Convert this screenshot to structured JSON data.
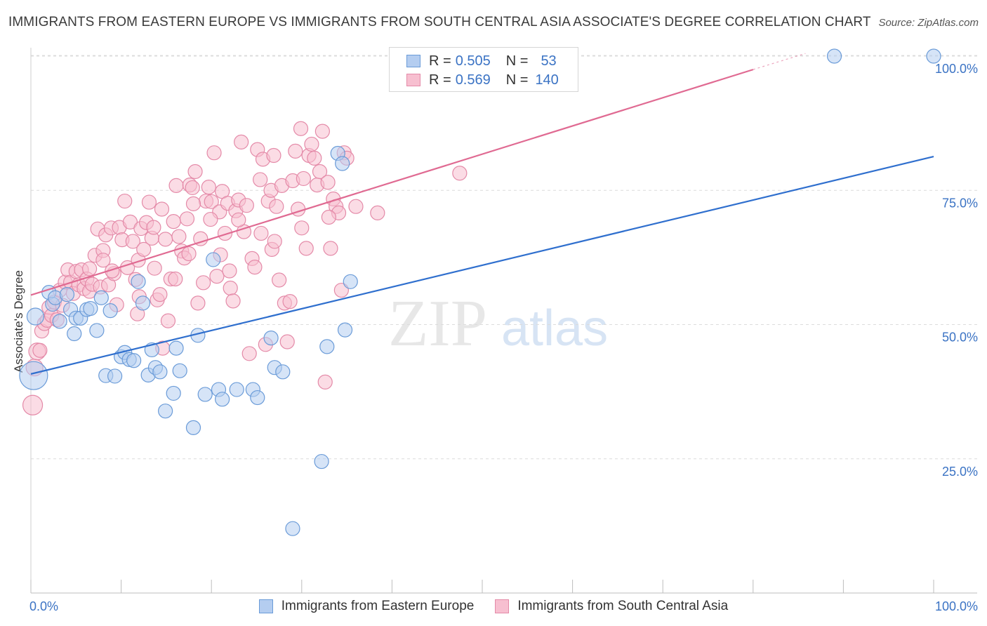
{
  "title": "IMMIGRANTS FROM EASTERN EUROPE VS IMMIGRANTS FROM SOUTH CENTRAL ASIA ASSOCIATE'S DEGREE CORRELATION CHART",
  "source": "Source: ZipAtlas.com",
  "watermark": {
    "part1": "ZIP",
    "part2": "atlas"
  },
  "legend": {
    "r_label": "R =",
    "n_label": "N =",
    "items": [
      {
        "r": "0.505",
        "n": "53",
        "fill": "#b4cdf0",
        "stroke": "#6a9bd8"
      },
      {
        "r": "0.569",
        "n": "140",
        "fill": "#f7bfd0",
        "stroke": "#e48aa8"
      }
    ]
  },
  "bottom_legend": [
    "Immigrants from Eastern Europe",
    "Immigrants from South Central Asia"
  ],
  "chart_data": {
    "type": "scatter",
    "xlabel": "",
    "ylabel": "Associate's Degree",
    "xlim": [
      0,
      100
    ],
    "ylim": [
      0,
      102
    ],
    "x_tick_labels": [
      "0.0%",
      "100.0%"
    ],
    "y_ticks": [
      25,
      50,
      75,
      100
    ],
    "y_tick_labels": [
      "25.0%",
      "50.0%",
      "75.0%",
      "100.0%"
    ],
    "grid": "dashed horizontal",
    "series": [
      {
        "name": "Immigrants from Eastern Europe",
        "color": "#6a9bd8",
        "fill": "#b4cdf0",
        "trend_color": "#2f6fce",
        "trend": {
          "x0": 0,
          "y0": 40.8,
          "x1": 100,
          "y1": 81.3
        },
        "points": [
          [
            0.3,
            40.5,
            20
          ],
          [
            0.5,
            51.5,
            12
          ],
          [
            2.0,
            56.0,
            10
          ],
          [
            2.4,
            53.8,
            10
          ],
          [
            2.7,
            55.0,
            10
          ],
          [
            3.2,
            50.6,
            10
          ],
          [
            4.0,
            55.6,
            10
          ],
          [
            4.4,
            52.8,
            10
          ],
          [
            4.8,
            48.3,
            10
          ],
          [
            5.0,
            51.2,
            10
          ],
          [
            5.5,
            51.2,
            10
          ],
          [
            6.2,
            52.8,
            10
          ],
          [
            6.6,
            53.0,
            10
          ],
          [
            7.3,
            48.9,
            10
          ],
          [
            7.8,
            55.0,
            10
          ],
          [
            8.3,
            40.5,
            10
          ],
          [
            8.8,
            52.6,
            10
          ],
          [
            9.3,
            40.4,
            10
          ],
          [
            10.0,
            44.0,
            10
          ],
          [
            10.4,
            44.8,
            10
          ],
          [
            10.9,
            43.5,
            10
          ],
          [
            11.4,
            43.3,
            10
          ],
          [
            11.9,
            58.0,
            10
          ],
          [
            12.4,
            54.0,
            10
          ],
          [
            13.0,
            40.6,
            10
          ],
          [
            13.4,
            45.3,
            10
          ],
          [
            13.8,
            42.0,
            10
          ],
          [
            14.3,
            41.2,
            10
          ],
          [
            14.9,
            33.9,
            10
          ],
          [
            15.8,
            37.2,
            10
          ],
          [
            16.1,
            45.6,
            10
          ],
          [
            16.5,
            41.4,
            10
          ],
          [
            18.0,
            30.8,
            10
          ],
          [
            18.5,
            48.0,
            10
          ],
          [
            19.3,
            37.0,
            10
          ],
          [
            20.2,
            62.1,
            10
          ],
          [
            20.8,
            37.9,
            10
          ],
          [
            21.2,
            36.1,
            10
          ],
          [
            22.8,
            37.9,
            10
          ],
          [
            24.6,
            37.9,
            10
          ],
          [
            25.1,
            36.4,
            10
          ],
          [
            26.6,
            47.5,
            10
          ],
          [
            27.0,
            42.0,
            10
          ],
          [
            27.9,
            41.2,
            10
          ],
          [
            29.0,
            12.0,
            10
          ],
          [
            32.2,
            24.5,
            10
          ],
          [
            32.8,
            45.9,
            10
          ],
          [
            34.0,
            81.9,
            10
          ],
          [
            34.5,
            80.0,
            10
          ],
          [
            34.8,
            49.0,
            10
          ],
          [
            35.4,
            58.0,
            10
          ],
          [
            89.0,
            100.0,
            10
          ],
          [
            100.0,
            100.0,
            10
          ]
        ]
      },
      {
        "name": "Immigrants from South Central Asia",
        "color": "#e48aa8",
        "fill": "#f7bfd0",
        "trend_color": "#e06a92",
        "trend": {
          "x0": 0,
          "y0": 55.5,
          "x1": 80.0,
          "y1": 97.5
        },
        "trend_dash_end": {
          "x": 85.8,
          "y": 100.5
        },
        "points": [
          [
            0.2,
            35.0,
            14
          ],
          [
            0.4,
            42.0,
            12
          ],
          [
            0.7,
            45.0,
            12
          ],
          [
            1.0,
            45.2,
            10
          ],
          [
            1.2,
            48.8,
            10
          ],
          [
            1.5,
            50.2,
            10
          ],
          [
            1.8,
            50.8,
            10
          ],
          [
            2.0,
            53.2,
            10
          ],
          [
            2.3,
            51.7,
            10
          ],
          [
            2.6,
            54.2,
            10
          ],
          [
            2.9,
            50.9,
            10
          ],
          [
            3.2,
            56.4,
            10
          ],
          [
            3.5,
            53.6,
            10
          ],
          [
            3.8,
            57.9,
            10
          ],
          [
            4.1,
            60.2,
            10
          ],
          [
            4.4,
            57.9,
            10
          ],
          [
            4.7,
            55.8,
            10
          ],
          [
            5.0,
            59.9,
            10
          ],
          [
            5.3,
            57.4,
            10
          ],
          [
            5.6,
            60.2,
            10
          ],
          [
            5.9,
            56.7,
            10
          ],
          [
            6.2,
            58.5,
            10
          ],
          [
            6.5,
            56.2,
            10
          ],
          [
            6.8,
            57.5,
            10
          ],
          [
            7.1,
            62.9,
            10
          ],
          [
            7.4,
            67.8,
            10
          ],
          [
            7.7,
            57.0,
            10
          ],
          [
            8.0,
            63.8,
            10
          ],
          [
            8.3,
            66.7,
            10
          ],
          [
            8.6,
            57.4,
            10
          ],
          [
            8.9,
            68.0,
            10
          ],
          [
            9.2,
            59.5,
            10
          ],
          [
            9.5,
            53.7,
            10
          ],
          [
            9.8,
            68.1,
            10
          ],
          [
            10.1,
            65.8,
            10
          ],
          [
            10.4,
            73.0,
            10
          ],
          [
            10.7,
            60.6,
            10
          ],
          [
            11.0,
            69.1,
            10
          ],
          [
            11.3,
            65.5,
            10
          ],
          [
            11.6,
            58.4,
            10
          ],
          [
            11.9,
            62.0,
            10
          ],
          [
            12.2,
            67.9,
            10
          ],
          [
            12.5,
            64.0,
            10
          ],
          [
            12.8,
            69.0,
            10
          ],
          [
            13.1,
            72.8,
            10
          ],
          [
            13.4,
            66.1,
            10
          ],
          [
            13.7,
            60.5,
            10
          ],
          [
            14.0,
            54.6,
            10
          ],
          [
            14.3,
            55.6,
            10
          ],
          [
            14.6,
            45.6,
            10
          ],
          [
            14.9,
            65.9,
            10
          ],
          [
            15.2,
            50.7,
            10
          ],
          [
            15.5,
            58.5,
            10
          ],
          [
            15.8,
            69.2,
            10
          ],
          [
            16.1,
            75.9,
            10
          ],
          [
            16.4,
            66.4,
            10
          ],
          [
            16.7,
            63.7,
            10
          ],
          [
            17.0,
            62.4,
            10
          ],
          [
            17.3,
            69.7,
            10
          ],
          [
            17.6,
            76.0,
            10
          ],
          [
            17.9,
            75.5,
            10
          ],
          [
            18.2,
            78.5,
            10
          ],
          [
            18.5,
            54.0,
            10
          ],
          [
            18.8,
            66.0,
            10
          ],
          [
            19.1,
            57.8,
            10
          ],
          [
            19.4,
            73.0,
            10
          ],
          [
            19.7,
            75.6,
            10
          ],
          [
            20.0,
            72.9,
            10
          ],
          [
            20.3,
            82.0,
            10
          ],
          [
            20.6,
            59.0,
            10
          ],
          [
            20.9,
            71.0,
            10
          ],
          [
            21.2,
            74.8,
            10
          ],
          [
            21.5,
            67.0,
            10
          ],
          [
            21.8,
            72.6,
            10
          ],
          [
            22.1,
            56.8,
            10
          ],
          [
            22.4,
            54.4,
            10
          ],
          [
            22.7,
            71.2,
            10
          ],
          [
            23.0,
            73.2,
            10
          ],
          [
            23.3,
            84.0,
            10
          ],
          [
            23.6,
            67.3,
            10
          ],
          [
            23.9,
            72.2,
            10
          ],
          [
            24.2,
            44.6,
            10
          ],
          [
            24.5,
            62.3,
            10
          ],
          [
            24.8,
            60.7,
            10
          ],
          [
            25.1,
            82.6,
            10
          ],
          [
            25.4,
            77.0,
            10
          ],
          [
            25.7,
            80.8,
            10
          ],
          [
            26.0,
            46.3,
            10
          ],
          [
            26.3,
            73.0,
            10
          ],
          [
            26.6,
            75.0,
            10
          ],
          [
            26.9,
            81.5,
            10
          ],
          [
            27.2,
            72.0,
            10
          ],
          [
            27.5,
            58.3,
            10
          ],
          [
            27.8,
            75.9,
            10
          ],
          [
            28.1,
            54.0,
            10
          ],
          [
            28.4,
            46.8,
            10
          ],
          [
            28.7,
            54.3,
            10
          ],
          [
            29.0,
            76.8,
            10
          ],
          [
            29.3,
            82.3,
            10
          ],
          [
            29.6,
            71.5,
            10
          ],
          [
            29.9,
            86.5,
            10
          ],
          [
            30.2,
            77.2,
            10
          ],
          [
            30.5,
            64.2,
            10
          ],
          [
            30.8,
            81.5,
            10
          ],
          [
            31.1,
            83.6,
            10
          ],
          [
            31.4,
            81.0,
            10
          ],
          [
            31.7,
            76.0,
            10
          ],
          [
            32.0,
            78.5,
            10
          ],
          [
            32.3,
            86.0,
            10
          ],
          [
            32.6,
            39.3,
            10
          ],
          [
            32.9,
            76.5,
            10
          ],
          [
            33.2,
            64.2,
            10
          ],
          [
            33.5,
            73.4,
            10
          ],
          [
            33.8,
            72.0,
            10
          ],
          [
            34.1,
            70.8,
            10
          ],
          [
            34.4,
            56.4,
            10
          ],
          [
            34.7,
            82.0,
            10
          ],
          [
            35.0,
            81.0,
            10
          ],
          [
            36.0,
            72.0,
            10
          ],
          [
            38.4,
            70.8,
            10
          ],
          [
            47.5,
            78.2,
            10
          ],
          [
            26.7,
            64.0,
            10
          ],
          [
            9.0,
            60.0,
            10
          ],
          [
            13.6,
            68.1,
            10
          ],
          [
            19.9,
            69.6,
            10
          ],
          [
            11.8,
            52.0,
            10
          ],
          [
            6.5,
            60.4,
            10
          ],
          [
            16.0,
            58.5,
            10
          ],
          [
            21.0,
            63.0,
            10
          ],
          [
            25.5,
            67.0,
            10
          ],
          [
            17.5,
            63.2,
            10
          ],
          [
            23.0,
            69.5,
            10
          ],
          [
            14.5,
            71.5,
            10
          ],
          [
            12.0,
            55.2,
            10
          ],
          [
            22.0,
            60.0,
            10
          ],
          [
            18.0,
            72.5,
            10
          ],
          [
            30.0,
            68.0,
            10
          ],
          [
            8.0,
            62.0,
            10
          ],
          [
            33.0,
            70.0,
            10
          ],
          [
            27.0,
            65.5,
            10
          ]
        ]
      }
    ]
  }
}
